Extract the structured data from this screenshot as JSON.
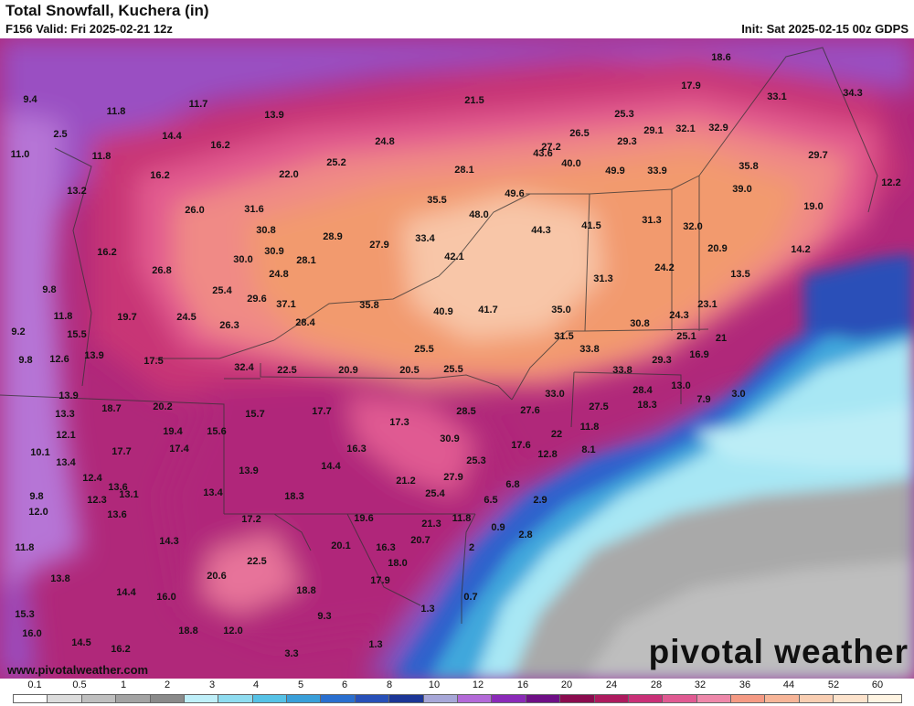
{
  "header": {
    "title": "Total Snowfall, Kuchera (in)",
    "valid": "F156 Valid: Fri 2025-02-21 12z",
    "init": "Init: Sat 2025-02-15 00z GDPS"
  },
  "branding": {
    "logo_text": "pivotal weather",
    "website": "www.pivotalweather.com"
  },
  "legend": {
    "ticks": [
      "0.1",
      "0.5",
      "1",
      "2",
      "3",
      "4",
      "5",
      "6",
      "8",
      "10",
      "12",
      "16",
      "20",
      "24",
      "28",
      "32",
      "36",
      "44",
      "52",
      "60"
    ],
    "colors": [
      "#ffffff",
      "#dcdcdc",
      "#bfbfbf",
      "#a3a3a3",
      "#8a8a8a",
      "#bfeff9",
      "#8fdcf0",
      "#56c2e6",
      "#3a9fd9",
      "#2a6fcf",
      "#2850b8",
      "#1c3696",
      "#a7a7d8",
      "#b36ad8",
      "#8a2ab8",
      "#6e0f86",
      "#8a0b4e",
      "#ad1a5e",
      "#c93077",
      "#e05a92",
      "#ee88aa",
      "#f59a84",
      "#f7b598",
      "#f9ceb2",
      "#fde3cc",
      "#fff4e2"
    ]
  },
  "map": {
    "values": [
      {
        "v": "9.4"
      },
      {
        "v": "11.8"
      },
      {
        "v": "11.7"
      },
      {
        "v": "13.9"
      },
      {
        "v": "21.5"
      },
      {
        "v": "18.6"
      },
      {
        "v": "17.9"
      },
      {
        "v": "33.1"
      },
      {
        "v": "34.3"
      },
      {
        "v": "25.3"
      },
      {
        "v": "26.5"
      },
      {
        "v": "29.1"
      },
      {
        "v": "32.1"
      },
      {
        "v": "32.9"
      },
      {
        "v": "24.8"
      },
      {
        "v": "27.2"
      },
      {
        "v": "29.3"
      },
      {
        "v": "2.5"
      },
      {
        "v": "14.4"
      },
      {
        "v": "16.2"
      },
      {
        "v": "11.0"
      },
      {
        "v": "11.8"
      },
      {
        "v": "25.2"
      },
      {
        "v": "22.0"
      },
      {
        "v": "28.1"
      },
      {
        "v": "40.0"
      },
      {
        "v": "49.9"
      },
      {
        "v": "33.9"
      },
      {
        "v": "35.8"
      },
      {
        "v": "29.7"
      },
      {
        "v": "43.6"
      },
      {
        "v": "16.2"
      },
      {
        "v": "13.2"
      },
      {
        "v": "49.6"
      },
      {
        "v": "39.0"
      },
      {
        "v": "12.2"
      },
      {
        "v": "35.5"
      },
      {
        "v": "26.0"
      },
      {
        "v": "31.6"
      },
      {
        "v": "48.0"
      },
      {
        "v": "44.3"
      },
      {
        "v": "41.5"
      },
      {
        "v": "31.3"
      },
      {
        "v": "32.0"
      },
      {
        "v": "19.0"
      },
      {
        "v": "30.8"
      },
      {
        "v": "28.9"
      },
      {
        "v": "27.9"
      },
      {
        "v": "33.4"
      },
      {
        "v": "16.2"
      },
      {
        "v": "30.9"
      },
      {
        "v": "42.1"
      },
      {
        "v": "20.9"
      },
      {
        "v": "14.2"
      },
      {
        "v": "30.0"
      },
      {
        "v": "28.1"
      },
      {
        "v": "26.8"
      },
      {
        "v": "24.2"
      },
      {
        "v": "24.8"
      },
      {
        "v": "13.5"
      },
      {
        "v": "9.8"
      },
      {
        "v": "25.4"
      },
      {
        "v": "29.6"
      },
      {
        "v": "31.3"
      },
      {
        "v": "37.1"
      },
      {
        "v": "35.8"
      },
      {
        "v": "23.1"
      },
      {
        "v": "11.8"
      },
      {
        "v": "19.7"
      },
      {
        "v": "24.5"
      },
      {
        "v": "40.9"
      },
      {
        "v": "41.7"
      },
      {
        "v": "35.0"
      },
      {
        "v": "24.3"
      },
      {
        "v": "28.4"
      },
      {
        "v": "26.3"
      },
      {
        "v": "30.8"
      },
      {
        "v": "9.2"
      },
      {
        "v": "15.5"
      },
      {
        "v": "25.1"
      },
      {
        "v": "31.5"
      },
      {
        "v": "21"
      },
      {
        "v": "33.8"
      },
      {
        "v": "13.9"
      },
      {
        "v": "25.5"
      },
      {
        "v": "16.9"
      },
      {
        "v": "9.8"
      },
      {
        "v": "12.6"
      },
      {
        "v": "17.5"
      },
      {
        "v": "29.3"
      },
      {
        "v": "32.4"
      },
      {
        "v": "22.5"
      },
      {
        "v": "20.9"
      },
      {
        "v": "20.5"
      },
      {
        "v": "25.5"
      },
      {
        "v": "33.8"
      },
      {
        "v": "28.4"
      },
      {
        "v": "13.0"
      },
      {
        "v": "33.0"
      },
      {
        "v": "13.9"
      },
      {
        "v": "7.9"
      },
      {
        "v": "3.0"
      },
      {
        "v": "27.5"
      },
      {
        "v": "18.3"
      },
      {
        "v": "13.3"
      },
      {
        "v": "18.7"
      },
      {
        "v": "20.2"
      },
      {
        "v": "15.7"
      },
      {
        "v": "17.7"
      },
      {
        "v": "28.5"
      },
      {
        "v": "27.6"
      },
      {
        "v": "11.8"
      },
      {
        "v": "17.3"
      },
      {
        "v": "19.4"
      },
      {
        "v": "12.1"
      },
      {
        "v": "15.6"
      },
      {
        "v": "22"
      },
      {
        "v": "30.9"
      },
      {
        "v": "17.4"
      },
      {
        "v": "17.6"
      },
      {
        "v": "8.1"
      },
      {
        "v": "10.1"
      },
      {
        "v": "17.7"
      },
      {
        "v": "16.3"
      },
      {
        "v": "12.8"
      },
      {
        "v": "13.4"
      },
      {
        "v": "25.3"
      },
      {
        "v": "13.9"
      },
      {
        "v": "14.4"
      },
      {
        "v": "13.6"
      },
      {
        "v": "12.4"
      },
      {
        "v": "21.2"
      },
      {
        "v": "27.9"
      },
      {
        "v": "6.8"
      },
      {
        "v": "9.8"
      },
      {
        "v": "13.1"
      },
      {
        "v": "13.4"
      },
      {
        "v": "18.3"
      },
      {
        "v": "25.4"
      },
      {
        "v": "12.3"
      },
      {
        "v": "2.9"
      },
      {
        "v": "6.5"
      },
      {
        "v": "12.0"
      },
      {
        "v": "13.6"
      },
      {
        "v": "17.2"
      },
      {
        "v": "19.6"
      },
      {
        "v": "21.3"
      },
      {
        "v": "11.8"
      },
      {
        "v": "0.9"
      },
      {
        "v": "14.3"
      },
      {
        "v": "20.7"
      },
      {
        "v": "2.8"
      },
      {
        "v": "20.1"
      },
      {
        "v": "11.8"
      },
      {
        "v": "16.3"
      },
      {
        "v": "2"
      },
      {
        "v": "22.5"
      },
      {
        "v": "18.0"
      },
      {
        "v": "13.8"
      },
      {
        "v": "20.6"
      },
      {
        "v": "17.9"
      },
      {
        "v": "14.4"
      },
      {
        "v": "18.8"
      },
      {
        "v": "16.0"
      },
      {
        "v": "0.7"
      },
      {
        "v": "15.3"
      },
      {
        "v": "9.3"
      },
      {
        "v": "1.3"
      },
      {
        "v": "16.0"
      },
      {
        "v": "18.8"
      },
      {
        "v": "12.0"
      },
      {
        "v": "14.5"
      },
      {
        "v": "1.3"
      },
      {
        "v": "16.2"
      },
      {
        "v": "3.3"
      }
    ]
  }
}
